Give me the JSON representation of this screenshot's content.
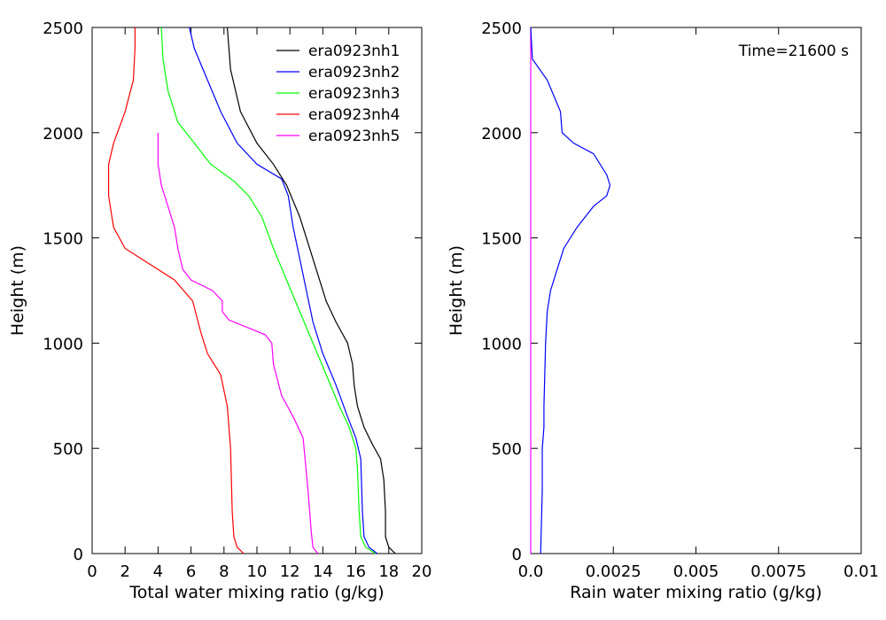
{
  "chart_data": [
    {
      "type": "line",
      "xlabel": "Total water mixing ratio (g/kg)",
      "ylabel": "Height (m)",
      "xlim": [
        0,
        20
      ],
      "ylim": [
        0,
        2500
      ],
      "xticks": [
        "0",
        "2",
        "4",
        "6",
        "8",
        "10",
        "12",
        "14",
        "16",
        "18",
        "20"
      ],
      "yticks": [
        "0",
        "500",
        "1000",
        "1500",
        "2000",
        "2500"
      ],
      "legend_position": "top-right",
      "series": [
        {
          "name": "era0923nh1",
          "color": "#000000",
          "points": [
            [
              18.4,
              0
            ],
            [
              18.0,
              30
            ],
            [
              17.8,
              80
            ],
            [
              17.8,
              200
            ],
            [
              17.7,
              350
            ],
            [
              17.5,
              450
            ],
            [
              17.0,
              520
            ],
            [
              16.5,
              600
            ],
            [
              16.1,
              700
            ],
            [
              15.9,
              800
            ],
            [
              15.8,
              900
            ],
            [
              15.5,
              1000
            ],
            [
              14.8,
              1100
            ],
            [
              14.2,
              1200
            ],
            [
              13.6,
              1350
            ],
            [
              13.0,
              1500
            ],
            [
              12.6,
              1600
            ],
            [
              11.8,
              1750
            ],
            [
              11.0,
              1850
            ],
            [
              10.0,
              1950
            ],
            [
              9.0,
              2100
            ],
            [
              8.7,
              2200
            ],
            [
              8.4,
              2300
            ],
            [
              8.3,
              2400
            ],
            [
              8.2,
              2500
            ]
          ]
        },
        {
          "name": "era0923nh2",
          "color": "#0000ff",
          "points": [
            [
              17.3,
              0
            ],
            [
              16.8,
              30
            ],
            [
              16.5,
              80
            ],
            [
              16.4,
              200
            ],
            [
              16.3,
              450
            ],
            [
              16.0,
              550
            ],
            [
              15.5,
              650
            ],
            [
              14.8,
              800
            ],
            [
              14.0,
              950
            ],
            [
              13.4,
              1100
            ],
            [
              13.0,
              1250
            ],
            [
              12.6,
              1400
            ],
            [
              12.2,
              1550
            ],
            [
              11.9,
              1700
            ],
            [
              11.5,
              1780
            ],
            [
              10.0,
              1850
            ],
            [
              8.8,
              1950
            ],
            [
              7.8,
              2100
            ],
            [
              7.0,
              2250
            ],
            [
              6.2,
              2400
            ],
            [
              5.9,
              2500
            ]
          ]
        },
        {
          "name": "era0923nh3",
          "color": "#00ff00",
          "points": [
            [
              17.2,
              0
            ],
            [
              16.6,
              30
            ],
            [
              16.3,
              80
            ],
            [
              16.2,
              200
            ],
            [
              16.1,
              400
            ],
            [
              16.0,
              500
            ],
            [
              15.6,
              600
            ],
            [
              15.0,
              700
            ],
            [
              14.2,
              850
            ],
            [
              13.4,
              1000
            ],
            [
              12.6,
              1150
            ],
            [
              11.8,
              1300
            ],
            [
              11.0,
              1450
            ],
            [
              10.3,
              1600
            ],
            [
              9.5,
              1700
            ],
            [
              8.6,
              1770
            ],
            [
              7.2,
              1850
            ],
            [
              6.2,
              1950
            ],
            [
              5.2,
              2050
            ],
            [
              4.6,
              2200
            ],
            [
              4.3,
              2350
            ],
            [
              4.2,
              2500
            ]
          ]
        },
        {
          "name": "era0923nh4",
          "color": "#ff0000",
          "points": [
            [
              9.2,
              0
            ],
            [
              8.8,
              30
            ],
            [
              8.6,
              80
            ],
            [
              8.5,
              200
            ],
            [
              8.4,
              500
            ],
            [
              8.2,
              700
            ],
            [
              7.8,
              850
            ],
            [
              7.0,
              950
            ],
            [
              6.6,
              1050
            ],
            [
              6.1,
              1200
            ],
            [
              5.0,
              1300
            ],
            [
              3.0,
              1400
            ],
            [
              2.0,
              1450
            ],
            [
              1.3,
              1550
            ],
            [
              1.0,
              1700
            ],
            [
              1.0,
              1850
            ],
            [
              1.3,
              1950
            ],
            [
              2.0,
              2100
            ],
            [
              2.5,
              2250
            ],
            [
              2.6,
              2400
            ],
            [
              2.6,
              2500
            ]
          ]
        },
        {
          "name": "era0923nh5",
          "color": "#ff00ff",
          "points": [
            [
              13.7,
              0
            ],
            [
              13.4,
              30
            ],
            [
              13.3,
              100
            ],
            [
              13.1,
              300
            ],
            [
              12.8,
              550
            ],
            [
              12.2,
              650
            ],
            [
              11.5,
              750
            ],
            [
              11.0,
              900
            ],
            [
              10.9,
              1000
            ],
            [
              10.5,
              1040
            ],
            [
              8.3,
              1110
            ],
            [
              7.9,
              1150
            ],
            [
              7.9,
              1200
            ],
            [
              7.3,
              1250
            ],
            [
              6.0,
              1300
            ],
            [
              5.5,
              1350
            ],
            [
              5.2,
              1450
            ],
            [
              5.0,
              1550
            ],
            [
              4.6,
              1650
            ],
            [
              4.2,
              1750
            ],
            [
              4.0,
              1850
            ],
            [
              4.0,
              2000
            ]
          ]
        }
      ]
    },
    {
      "type": "line",
      "xlabel": "Rain water mixing ratio (g/kg)",
      "ylabel": "Height (m)",
      "xlim": [
        0,
        0.01
      ],
      "ylim": [
        0,
        2500
      ],
      "xticks": [
        "0.0",
        "0.0025",
        "0.005",
        "0.0075",
        "0.01"
      ],
      "yticks": [
        "0",
        "500",
        "1000",
        "1500",
        "2000",
        "2500"
      ],
      "annotation": "Time=21600 s",
      "series": [
        {
          "color": "#ff00ff",
          "points": [
            [
              0.0,
              0
            ],
            [
              0.0,
              2500
            ]
          ]
        },
        {
          "color": "#0000ff",
          "points": [
            [
              0.0,
              2500
            ],
            [
              5e-05,
              2350
            ],
            [
              0.0005,
              2250
            ],
            [
              0.0009,
              2100
            ],
            [
              0.00095,
              2000
            ],
            [
              0.0013,
              1950
            ],
            [
              0.0019,
              1900
            ],
            [
              0.0023,
              1800
            ],
            [
              0.0024,
              1750
            ],
            [
              0.0023,
              1700
            ],
            [
              0.0019,
              1650
            ],
            [
              0.0014,
              1550
            ],
            [
              0.001,
              1450
            ],
            [
              0.0008,
              1350
            ],
            [
              0.0006,
              1250
            ],
            [
              0.0005,
              1150
            ],
            [
              0.00045,
              1000
            ],
            [
              0.0004,
              700
            ],
            [
              0.0004,
              600
            ],
            [
              0.00035,
              500
            ],
            [
              0.00035,
              300
            ],
            [
              0.0003,
              0
            ]
          ]
        }
      ]
    }
  ]
}
